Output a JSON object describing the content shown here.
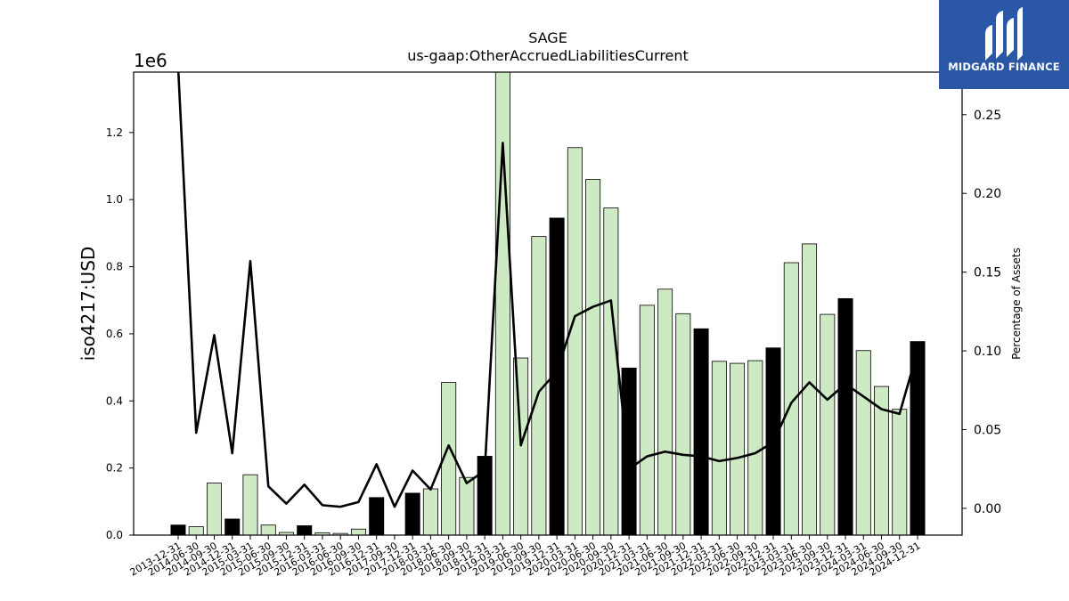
{
  "chart_data": {
    "type": "bar",
    "title": "SAGE",
    "subtitle": "us-gaap:OtherAccruedLiabilitiesCurrent",
    "ylabel": "iso4217:USD",
    "y_offset_label": "1e6",
    "y2label": "Percentage of Assets",
    "ylim": [
      0,
      1.38
    ],
    "y2lim": [
      -0.017,
      0.277
    ],
    "yticks": [
      "0.0",
      "0.2",
      "0.4",
      "0.6",
      "0.8",
      "1.0",
      "1.2"
    ],
    "y2ticks": [
      "0.00",
      "0.05",
      "0.10",
      "0.15",
      "0.20",
      "0.25"
    ],
    "categories": [
      "2013-12-31",
      "2014-06-30",
      "2014-09-30",
      "2014-12-31",
      "2015-03-31",
      "2015-06-30",
      "2015-09-30",
      "2015-12-31",
      "2016-03-31",
      "2016-06-30",
      "2016-09-30",
      "2016-12-31",
      "2017-09-30",
      "2017-12-31",
      "2018-03-31",
      "2018-06-30",
      "2018-09-30",
      "2018-12-31",
      "2019-03-31",
      "2019-06-30",
      "2019-09-30",
      "2019-12-31",
      "2020-03-31",
      "2020-06-30",
      "2020-09-30",
      "2020-12-31",
      "2021-03-31",
      "2021-06-30",
      "2021-09-30",
      "2021-12-31",
      "2022-03-31",
      "2022-06-30",
      "2022-09-30",
      "2022-12-31",
      "2023-03-31",
      "2023-06-30",
      "2023-09-30",
      "2023-12-31",
      "2024-03-31",
      "2024-06-30",
      "2024-09-30",
      "2024-12-31"
    ],
    "series": [
      {
        "kind": "bar",
        "values": [
          0.03,
          0.025,
          0.155,
          0.048,
          0.18,
          0.03,
          0.008,
          0.028,
          0.007,
          0.005,
          0.018,
          0.112,
          0,
          0.125,
          0.138,
          0.455,
          0.172,
          0.235,
          1.38,
          0.528,
          0.89,
          0.945,
          1.155,
          1.06,
          0.975,
          0.498,
          0.685,
          0.733,
          0.66,
          0.615,
          0.518,
          0.512,
          0.52,
          0.558,
          0.812,
          0.868,
          0.658,
          0.705,
          0.55,
          0.443,
          0.375,
          0.577
        ],
        "year_end": [
          true,
          false,
          false,
          true,
          false,
          false,
          false,
          true,
          false,
          false,
          false,
          true,
          false,
          true,
          false,
          false,
          false,
          true,
          false,
          false,
          false,
          true,
          false,
          false,
          false,
          true,
          false,
          false,
          false,
          true,
          false,
          false,
          false,
          true,
          false,
          false,
          false,
          true,
          false,
          false,
          false,
          true
        ]
      },
      {
        "kind": "line",
        "axis": "right",
        "values": [
          0.28,
          0.048,
          0.11,
          0.035,
          0.157,
          0.014,
          0.003,
          0.015,
          0.002,
          0.001,
          0.004,
          0.028,
          0.001,
          0.024,
          0.012,
          0.04,
          0.016,
          0.024,
          0.232,
          0.04,
          0.074,
          0.087,
          0.122,
          0.128,
          0.132,
          0.025,
          0.033,
          0.036,
          0.034,
          0.033,
          0.03,
          0.032,
          0.035,
          0.042,
          0.067,
          0.08,
          0.069,
          0.079,
          0.071,
          0.063,
          0.06,
          0.1
        ]
      }
    ],
    "colors": {
      "bar_normal": "#cdeac4",
      "bar_year_end": "#000000",
      "line": "#000000"
    }
  },
  "logo": {
    "text": "MIDGARD FINANCE"
  }
}
